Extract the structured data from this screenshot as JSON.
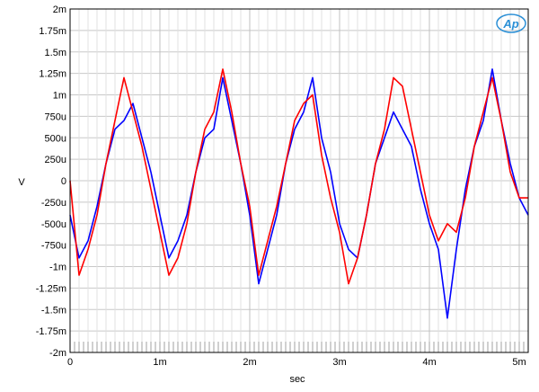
{
  "chart_data": {
    "type": "line",
    "xlabel": "sec",
    "ylabel": "V",
    "xlim": [
      0,
      0.0051
    ],
    "ylim": [
      -0.002,
      0.002
    ],
    "x_ticks": [
      {
        "value": 0,
        "label": "0"
      },
      {
        "value": 0.001,
        "label": "1m"
      },
      {
        "value": 0.002,
        "label": "2m"
      },
      {
        "value": 0.003,
        "label": "3m"
      },
      {
        "value": 0.004,
        "label": "4m"
      },
      {
        "value": 0.005,
        "label": "5m"
      }
    ],
    "y_ticks": [
      {
        "value": 0.002,
        "label": "2m"
      },
      {
        "value": 0.00175,
        "label": "1.75m"
      },
      {
        "value": 0.0015,
        "label": "1.5m"
      },
      {
        "value": 0.00125,
        "label": "1.25m"
      },
      {
        "value": 0.001,
        "label": "1m"
      },
      {
        "value": 0.00075,
        "label": "750u"
      },
      {
        "value": 0.0005,
        "label": "500u"
      },
      {
        "value": 0.00025,
        "label": "250u"
      },
      {
        "value": 0,
        "label": "0"
      },
      {
        "value": -0.00025,
        "label": "-250u"
      },
      {
        "value": -0.0005,
        "label": "-500u"
      },
      {
        "value": -0.00075,
        "label": "-750u"
      },
      {
        "value": -0.001,
        "label": "-1m"
      },
      {
        "value": -0.00125,
        "label": "-1.25m"
      },
      {
        "value": -0.0015,
        "label": "-1.5m"
      },
      {
        "value": -0.00175,
        "label": "-1.75m"
      },
      {
        "value": -0.002,
        "label": "-2m"
      }
    ],
    "grid": true,
    "logo": "Ap",
    "series": [
      {
        "color": "#0000ff",
        "x": [
          0,
          0.0001,
          0.0002,
          0.0003,
          0.0004,
          0.0005,
          0.0006,
          0.0007,
          0.0008,
          0.0009,
          0.001,
          0.0011,
          0.0012,
          0.0013,
          0.0014,
          0.0015,
          0.0016,
          0.0017,
          0.0018,
          0.0019,
          0.002,
          0.0021,
          0.0022,
          0.0023,
          0.0024,
          0.0025,
          0.0026,
          0.0027,
          0.0028,
          0.0029,
          0.003,
          0.0031,
          0.0032,
          0.0033,
          0.0034,
          0.0035,
          0.0036,
          0.0037,
          0.0038,
          0.0039,
          0.004,
          0.0041,
          0.0042,
          0.0043,
          0.0044,
          0.0045,
          0.0046,
          0.0047,
          0.0048,
          0.0049,
          0.005,
          0.0051
        ],
        "y": [
          -0.0004,
          -0.0009,
          -0.0007,
          -0.0003,
          0.0002,
          0.0006,
          0.0007,
          0.0009,
          0.0005,
          0.0001,
          -0.0004,
          -0.0009,
          -0.0007,
          -0.0004,
          0.0001,
          0.0005,
          0.0006,
          0.0012,
          0.0007,
          0.0002,
          -0.0004,
          -0.0012,
          -0.0008,
          -0.0004,
          0.0002,
          0.0006,
          0.0008,
          0.0012,
          0.0005,
          0.0001,
          -0.0005,
          -0.0008,
          -0.0009,
          -0.0004,
          0.0002,
          0.0005,
          0.0008,
          0.0006,
          0.0004,
          -0.0001,
          -0.0005,
          -0.0008,
          -0.0016,
          -0.0008,
          -0.0001,
          0.0004,
          0.0007,
          0.0013,
          0.0007,
          0.0002,
          -0.0002,
          -0.0004
        ]
      },
      {
        "color": "#ff0000",
        "x": [
          0,
          0.0001,
          0.0002,
          0.0003,
          0.0004,
          0.0005,
          0.0006,
          0.0007,
          0.0008,
          0.0009,
          0.001,
          0.0011,
          0.0012,
          0.0013,
          0.0014,
          0.0015,
          0.0016,
          0.0017,
          0.0018,
          0.0019,
          0.002,
          0.0021,
          0.0022,
          0.0023,
          0.0024,
          0.0025,
          0.0026,
          0.0027,
          0.0028,
          0.0029,
          0.003,
          0.0031,
          0.0032,
          0.0033,
          0.0034,
          0.0035,
          0.0036,
          0.0037,
          0.0038,
          0.0039,
          0.004,
          0.0041,
          0.0042,
          0.0043,
          0.0044,
          0.0045,
          0.0046,
          0.0047,
          0.0048,
          0.0049,
          0.005,
          0.0051
        ],
        "y": [
          0.0,
          -0.0011,
          -0.0008,
          -0.0004,
          0.0002,
          0.0007,
          0.0012,
          0.0008,
          0.0004,
          -0.0001,
          -0.0006,
          -0.0011,
          -0.0009,
          -0.0005,
          0.0001,
          0.0006,
          0.0008,
          0.0013,
          0.0008,
          0.0002,
          -0.0003,
          -0.0011,
          -0.0007,
          -0.0003,
          0.0002,
          0.0007,
          0.0009,
          0.001,
          0.0003,
          -0.0002,
          -0.0006,
          -0.0012,
          -0.0009,
          -0.0004,
          0.0002,
          0.0006,
          0.0012,
          0.0011,
          0.0006,
          0.0001,
          -0.0004,
          -0.0007,
          -0.0005,
          -0.0006,
          -0.0002,
          0.0004,
          0.0008,
          0.0012,
          0.0007,
          0.0001,
          -0.0002,
          -0.0002
        ]
      }
    ]
  }
}
